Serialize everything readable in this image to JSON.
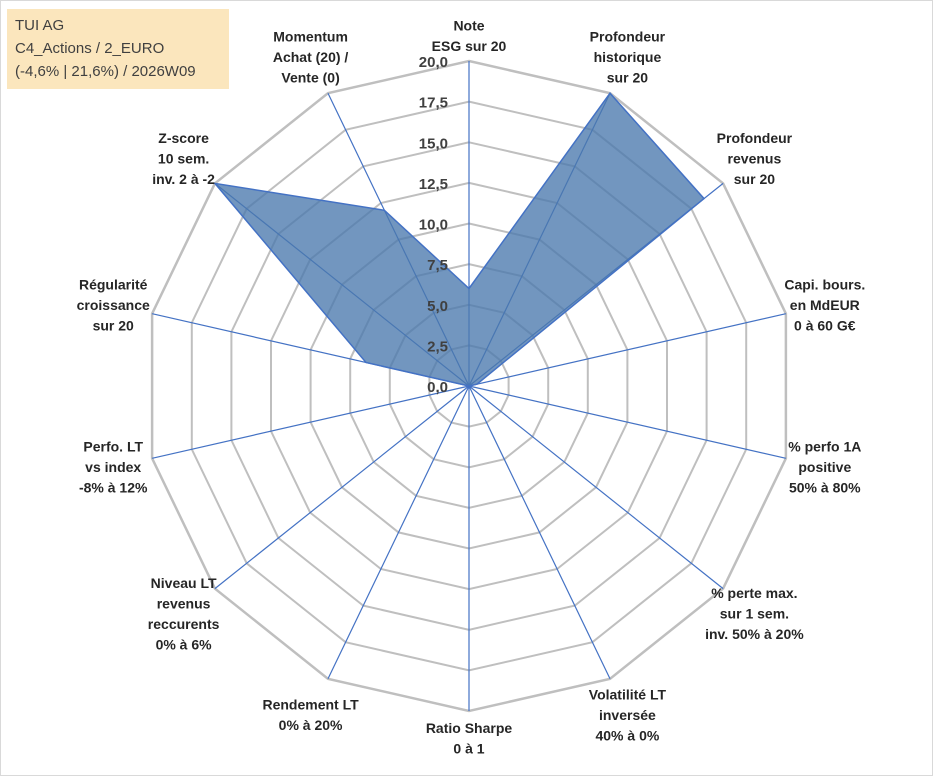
{
  "info": {
    "company": "TUI AG",
    "category": "C4_Actions / 2_EURO",
    "range_week": "(-4,6% | 21,6%) / 2026W09"
  },
  "colors": {
    "fill": "#4a78ad",
    "stroke": "#4472c4",
    "grid": "#bfbfbf",
    "info_bg": "#fbe6bd"
  },
  "chart_data": {
    "type": "radar",
    "title": "",
    "rmin": 0,
    "rmax": 20,
    "tick_step": 2.5,
    "tick_labels": [
      "0,0",
      "2,5",
      "5,0",
      "7,5",
      "10,0",
      "12,5",
      "15,0",
      "17,5",
      "20,0"
    ],
    "axes": [
      {
        "label": [
          "Note",
          "ESG sur 20"
        ],
        "value": 6
      },
      {
        "label": [
          "Profondeur",
          "historique",
          "sur 20"
        ],
        "value": 20
      },
      {
        "label": [
          "Profondeur",
          "revenus",
          "sur 20"
        ],
        "value": 18.5
      },
      {
        "label": [
          "Capi. bours.",
          "en MdEUR",
          "0 à 60 G€"
        ],
        "value": 0.5
      },
      {
        "label": [
          "% perfo 1A",
          "positive",
          "50% à 80%"
        ],
        "value": 0
      },
      {
        "label": [
          "% perte max.",
          "sur 1 sem.",
          "inv. 50% à 20%"
        ],
        "value": 0
      },
      {
        "label": [
          "Volatilité LT",
          "inversée",
          "40% à 0%"
        ],
        "value": 0
      },
      {
        "label": [
          "Ratio Sharpe",
          "0 à 1"
        ],
        "value": 0
      },
      {
        "label": [
          "Rendement LT",
          "0% à 20%"
        ],
        "value": 0
      },
      {
        "label": [
          "Niveau LT",
          "revenus",
          "reccurents",
          "0% à 6%"
        ],
        "value": 0
      },
      {
        "label": [
          "Perfo. LT",
          "vs index",
          "-8% à 12%"
        ],
        "value": 0
      },
      {
        "label": [
          "Régularité",
          "croissance",
          "sur 20"
        ],
        "value": 6.5
      },
      {
        "label": [
          "Z-score",
          "10 sem.",
          "inv. 2 à -2"
        ],
        "value": 20
      },
      {
        "label": [
          "Momentum",
          "Achat (20) /",
          "Vente (0)"
        ],
        "value": 12
      }
    ]
  }
}
